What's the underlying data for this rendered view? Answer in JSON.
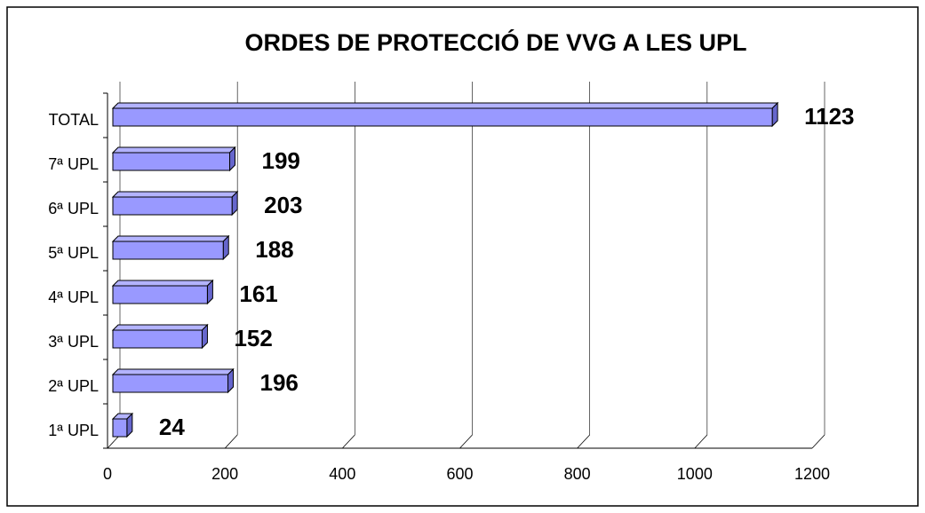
{
  "chart_data": {
    "type": "hbar3d",
    "title": "ORDES DE PROTECCIÓ DE VVG A LES UPL",
    "categories": [
      "TOTAL",
      "7ª UPL",
      "6ª UPL",
      "5ª UPL",
      "4ª UPL",
      "3ª UPL",
      "2ª UPL",
      "1ª UPL"
    ],
    "values": [
      1123,
      199,
      203,
      188,
      161,
      152,
      196,
      24
    ],
    "color": "#9999ff",
    "xlim": [
      0,
      1200
    ],
    "xticks": [
      0,
      200,
      400,
      600,
      800,
      1000,
      1200
    ],
    "grid": true
  }
}
